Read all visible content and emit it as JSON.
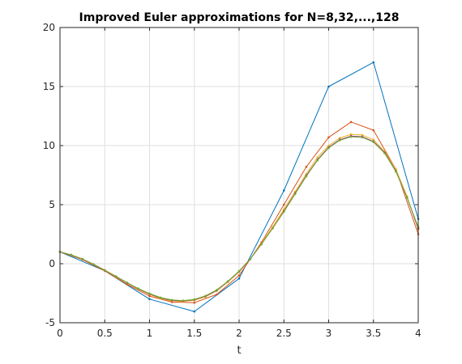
{
  "chart_data": {
    "type": "line",
    "title": "Improved Euler approximations for N=8,32,...,128",
    "xlabel": "t",
    "ylabel": "",
    "xlim": [
      0,
      4
    ],
    "ylim": [
      -5,
      20
    ],
    "grid": true,
    "x_ticks": [
      "0",
      "0.5",
      "1",
      "1.5",
      "2",
      "2.5",
      "3",
      "3.5",
      "4"
    ],
    "y_ticks": [
      "-5",
      "0",
      "5",
      "10",
      "15",
      "20"
    ],
    "series": [
      {
        "color": "#0072BD",
        "x": [
          0,
          0.5,
          1,
          1.5,
          2,
          2.5,
          3,
          3.5,
          4
        ],
        "y": [
          1,
          -0.6,
          -3.0,
          -4.05,
          -1.25,
          6.2,
          15.0,
          17.05,
          3.8
        ]
      },
      {
        "color": "#D95319",
        "x": [
          0,
          0.25,
          0.5,
          0.75,
          1,
          1.25,
          1.5,
          1.75,
          2,
          2.25,
          2.5,
          2.75,
          3,
          3.25,
          3.5,
          3.75,
          4
        ],
        "y": [
          1,
          0.35,
          -0.6,
          -1.75,
          -2.75,
          -3.25,
          -3.3,
          -2.6,
          -1.0,
          1.8,
          5.0,
          8.2,
          10.7,
          12.0,
          11.3,
          8.0,
          2.5
        ]
      },
      {
        "color": "#EDB120",
        "x": [
          0,
          0.125,
          0.25,
          0.375,
          0.5,
          0.625,
          0.75,
          0.875,
          1,
          1.125,
          1.25,
          1.375,
          1.5,
          1.625,
          1.75,
          1.875,
          2,
          2.125,
          2.25,
          2.375,
          2.5,
          2.625,
          2.75,
          2.875,
          3,
          3.125,
          3.25,
          3.375,
          3.5,
          3.625,
          3.75,
          3.875,
          4
        ],
        "y": [
          1,
          0.75,
          0.4,
          -0.05,
          -0.55,
          -1.1,
          -1.65,
          -2.15,
          -2.6,
          -2.95,
          -3.15,
          -3.2,
          -3.1,
          -2.8,
          -2.3,
          -1.55,
          -0.7,
          0.4,
          1.7,
          3.1,
          4.6,
          6.1,
          7.6,
          9.0,
          10.0,
          10.65,
          10.95,
          10.9,
          10.5,
          9.5,
          8.0,
          5.7,
          2.9
        ]
      },
      {
        "color": "#7E2F8E",
        "x": [
          0,
          0.125,
          0.25,
          0.375,
          0.5,
          0.625,
          0.75,
          0.875,
          1,
          1.125,
          1.25,
          1.375,
          1.5,
          1.625,
          1.75,
          1.875,
          2,
          2.125,
          2.25,
          2.375,
          2.5,
          2.625,
          2.75,
          2.875,
          3,
          3.125,
          3.25,
          3.375,
          3.5,
          3.625,
          3.75,
          3.875,
          4
        ],
        "y": [
          1,
          0.75,
          0.4,
          -0.05,
          -0.55,
          -1.08,
          -1.62,
          -2.12,
          -2.56,
          -2.9,
          -3.1,
          -3.15,
          -3.05,
          -2.75,
          -2.25,
          -1.5,
          -0.65,
          0.4,
          1.65,
          3.0,
          4.45,
          5.95,
          7.45,
          8.8,
          9.85,
          10.5,
          10.8,
          10.75,
          10.35,
          9.4,
          7.85,
          5.6,
          3.0
        ]
      },
      {
        "color": "#77AC30",
        "x": [
          0,
          0.125,
          0.25,
          0.375,
          0.5,
          0.625,
          0.75,
          0.875,
          1,
          1.125,
          1.25,
          1.375,
          1.5,
          1.625,
          1.75,
          1.875,
          2,
          2.125,
          2.25,
          2.375,
          2.5,
          2.625,
          2.75,
          2.875,
          3,
          3.125,
          3.25,
          3.375,
          3.5,
          3.625,
          3.75,
          3.875,
          4
        ],
        "y": [
          1,
          0.75,
          0.4,
          -0.05,
          -0.55,
          -1.07,
          -1.6,
          -2.1,
          -2.53,
          -2.87,
          -3.07,
          -3.12,
          -3.02,
          -2.72,
          -2.22,
          -1.48,
          -0.62,
          0.42,
          1.65,
          3.0,
          4.4,
          5.9,
          7.4,
          8.75,
          9.8,
          10.45,
          10.75,
          10.7,
          10.3,
          9.35,
          7.8,
          5.6,
          3.1
        ]
      }
    ]
  }
}
